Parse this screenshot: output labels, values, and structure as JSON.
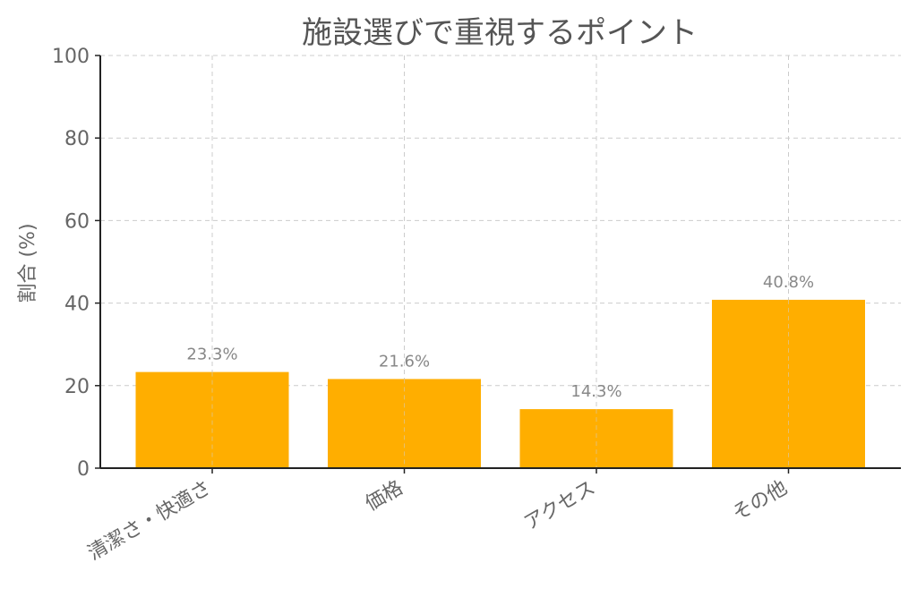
{
  "chart_data": {
    "type": "bar",
    "title": "施設選びで重視するポイント",
    "xlabel": "",
    "ylabel": "割合 (%)",
    "categories": [
      "清潔さ・快適さ",
      "価格",
      "アクセス",
      "その他"
    ],
    "values": [
      23.3,
      21.6,
      14.3,
      40.8
    ],
    "data_labels": [
      "23.3%",
      "21.6%",
      "14.3%",
      "40.8%"
    ],
    "ylim": [
      0,
      100
    ],
    "yticks": [
      0,
      20,
      40,
      60,
      80,
      100
    ],
    "bar_color": "#FFAE00",
    "grid": true,
    "legend": "none"
  }
}
